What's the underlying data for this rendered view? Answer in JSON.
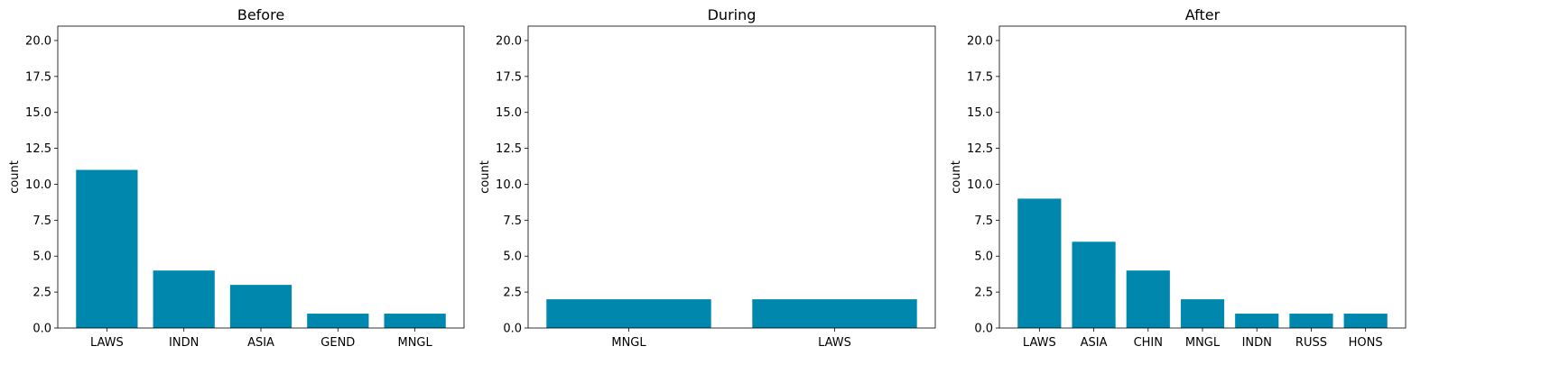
{
  "figure": {
    "bar_color": "#0087ae",
    "background": "#ffffff"
  },
  "chart_data": [
    {
      "type": "bar",
      "title": "Before",
      "xlabel": "",
      "ylabel": "count",
      "ylim": [
        0,
        21
      ],
      "yticks": [
        "0.0",
        "2.5",
        "5.0",
        "7.5",
        "10.0",
        "12.5",
        "15.0",
        "17.5",
        "20.0"
      ],
      "categories": [
        "LAWS",
        "INDN",
        "ASIA",
        "GEND",
        "MNGL"
      ],
      "values": [
        11,
        4,
        3,
        1,
        1
      ]
    },
    {
      "type": "bar",
      "title": "During",
      "xlabel": "",
      "ylabel": "count",
      "ylim": [
        0,
        21
      ],
      "yticks": [
        "0.0",
        "2.5",
        "5.0",
        "7.5",
        "10.0",
        "12.5",
        "15.0",
        "17.5",
        "20.0"
      ],
      "categories": [
        "MNGL",
        "LAWS"
      ],
      "values": [
        2,
        2
      ]
    },
    {
      "type": "bar",
      "title": "After",
      "xlabel": "",
      "ylabel": "count",
      "ylim": [
        0,
        21
      ],
      "yticks": [
        "0.0",
        "2.5",
        "5.0",
        "7.5",
        "10.0",
        "12.5",
        "15.0",
        "17.5",
        "20.0"
      ],
      "categories": [
        "LAWS",
        "ASIA",
        "CHIN",
        "MNGL",
        "INDN",
        "RUSS",
        "HONS"
      ],
      "values": [
        9,
        6,
        4,
        2,
        1,
        1,
        1
      ]
    }
  ]
}
